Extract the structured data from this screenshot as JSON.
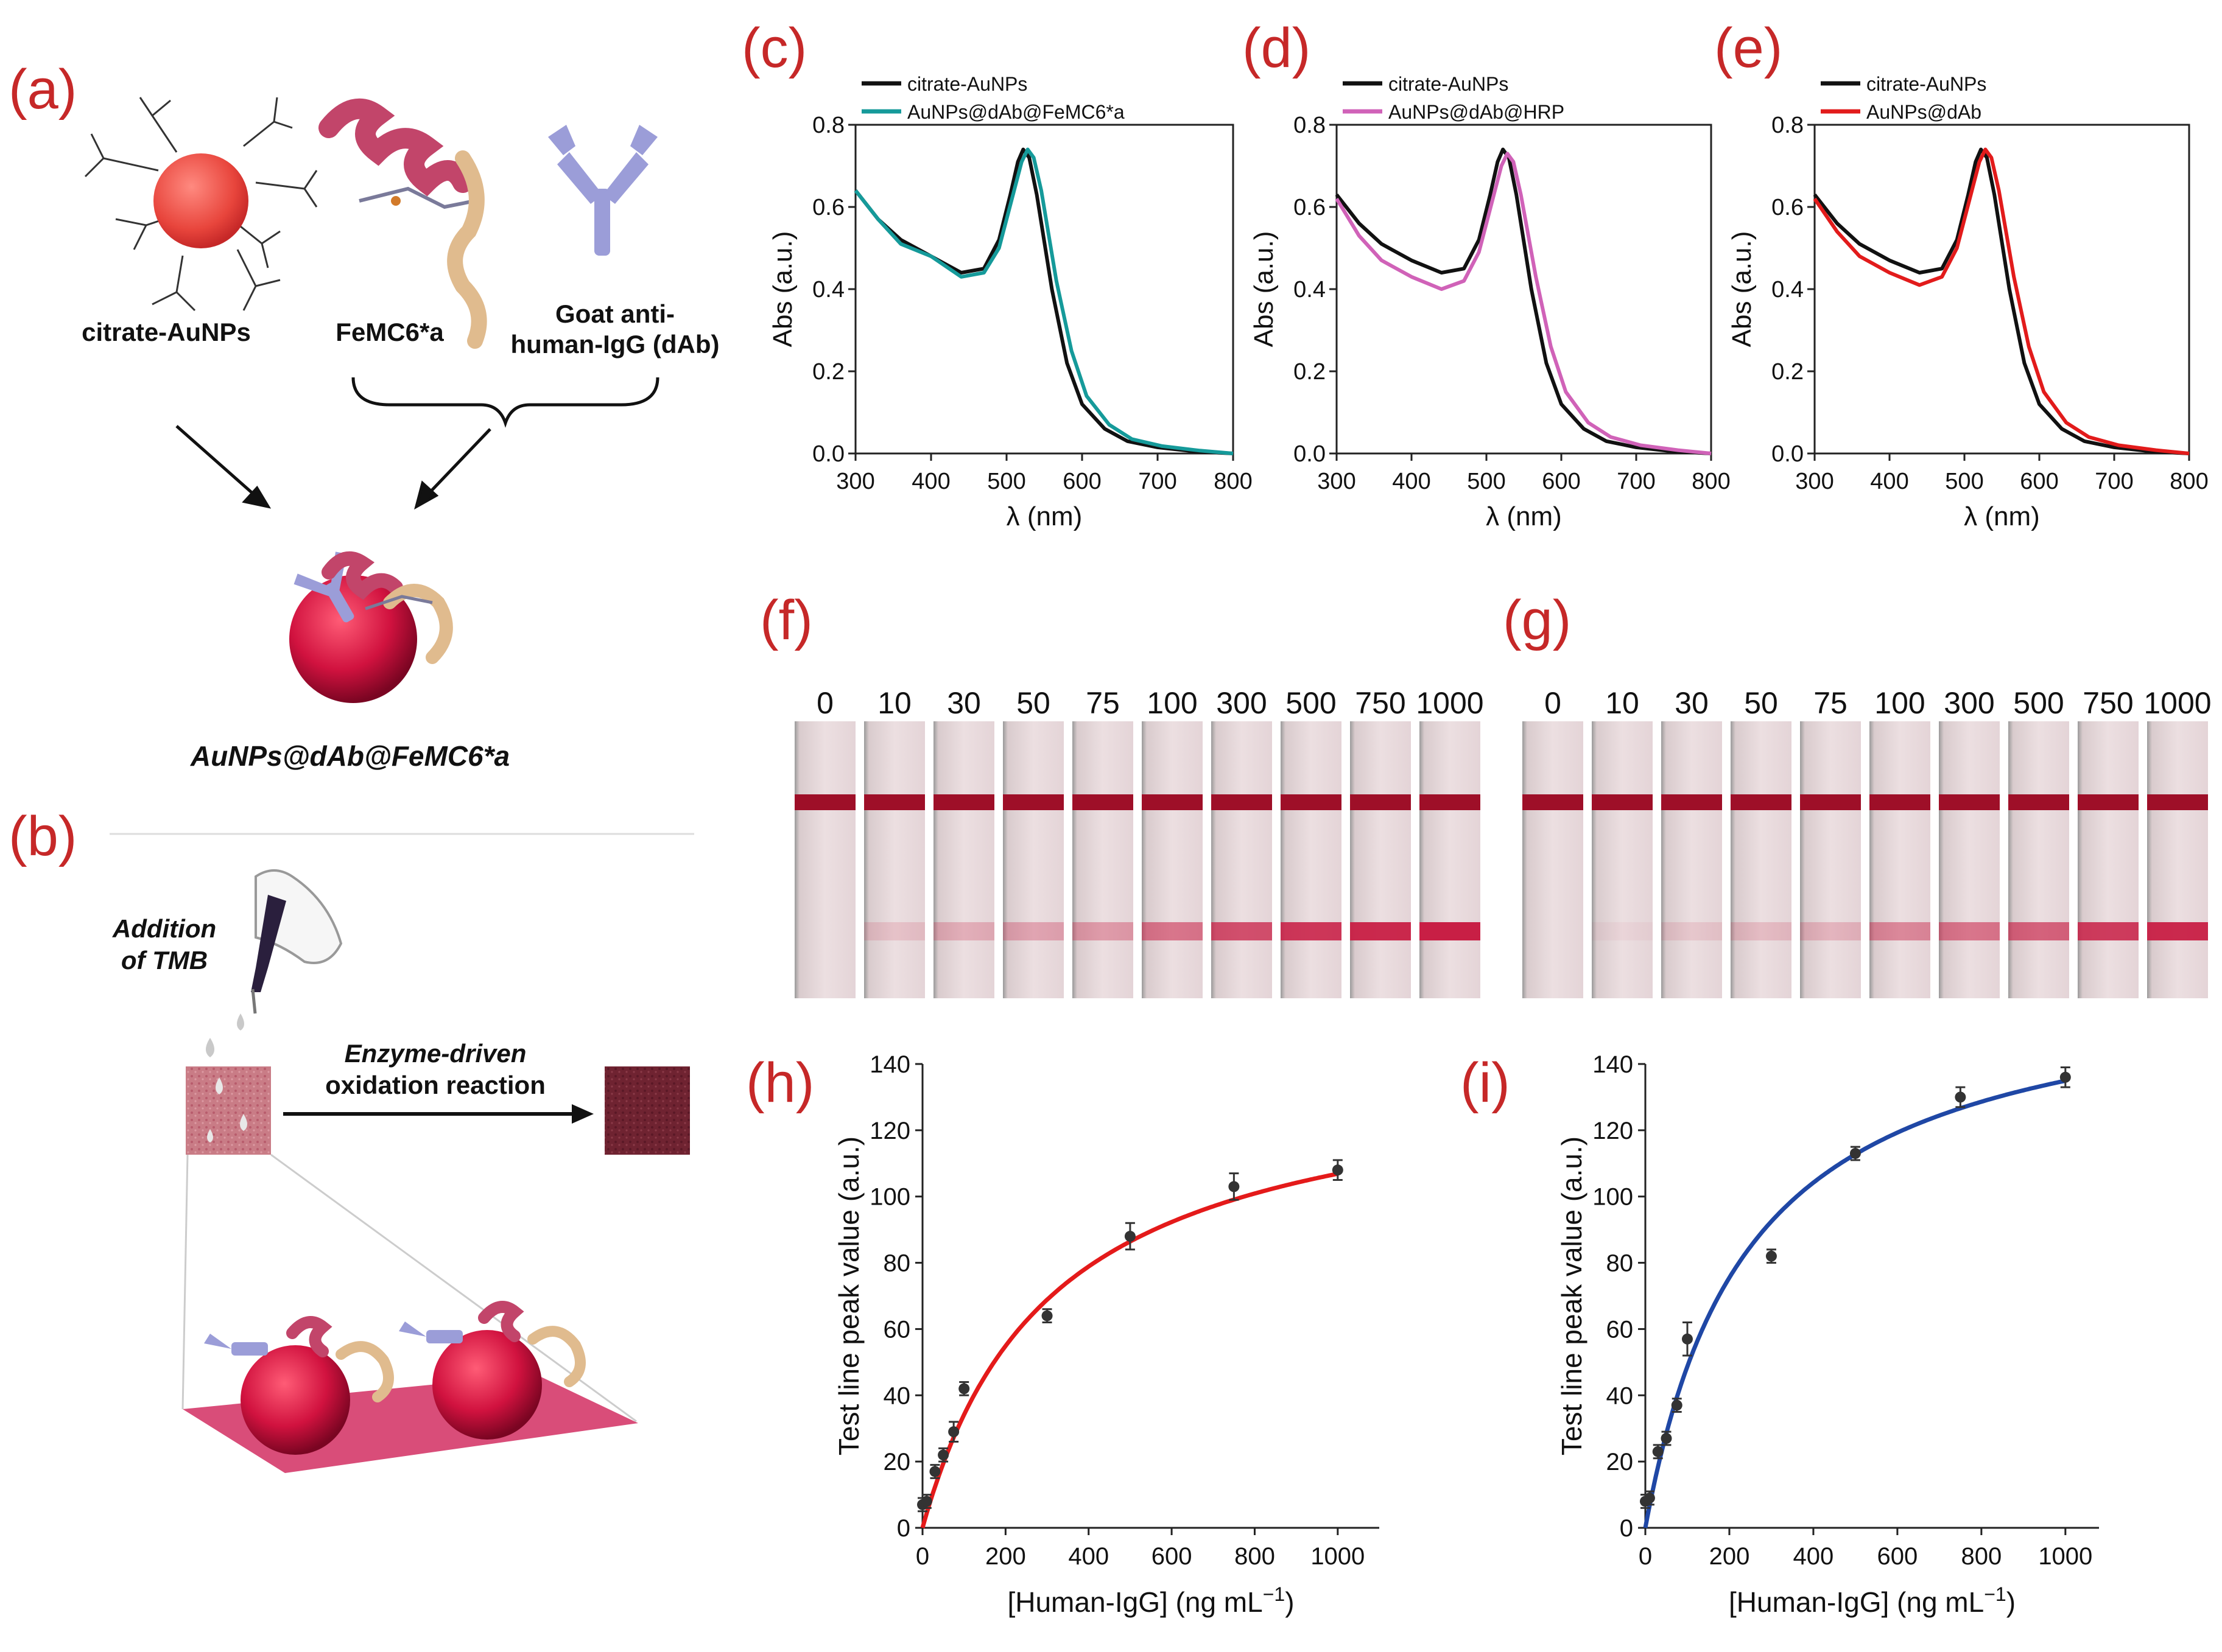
{
  "panels": {
    "a": "(a)",
    "b": "(b)",
    "c": "(c)",
    "d": "(d)",
    "e": "(e)",
    "f": "(f)",
    "g": "(g)",
    "h": "(h)",
    "i": "(i)"
  },
  "schematic": {
    "citrate_label": "citrate-AuNPs",
    "femc_label": "FeMC6*a",
    "dab_label_1": "Goat anti-",
    "dab_label_2": "human-IgG (dAb)",
    "conjugate_label": "AuNPs@dAb@FeMC6*a",
    "tmb_label_1": "Addition",
    "tmb_label_2": "of TMB",
    "reaction_label_1": "Enzyme-driven",
    "reaction_label_2": "oxidation reaction"
  },
  "strips": {
    "concentrations": [
      "0",
      "10",
      "30",
      "50",
      "75",
      "100",
      "300",
      "500",
      "750",
      "1000"
    ]
  },
  "colors": {
    "panel_letter": "#c62828",
    "citrate": "#111111",
    "femc": "#159a9a",
    "hrp": "#d062b8",
    "dab": "#e21b1b",
    "fit_h": "#e41a1a",
    "fit_i": "#1f47a5",
    "strip_bg": "#e9d8db",
    "control_line": "#9e0f28",
    "test_line": "#c81f45"
  },
  "chart_data": [
    {
      "id": "c",
      "type": "line",
      "xlabel": "λ (nm)",
      "ylabel": "Abs (a.u.)",
      "xlim": [
        300,
        800
      ],
      "ylim": [
        0,
        0.8
      ],
      "xticks": [
        300,
        400,
        500,
        600,
        700,
        800
      ],
      "yticks": [
        0.0,
        0.2,
        0.4,
        0.6,
        0.8
      ],
      "ytick_labels": [
        "0.0",
        "0.2",
        "0.4",
        "0.6",
        "0.8"
      ],
      "legend": [
        "citrate-AuNPs",
        "AuNPs@dAb@FeMC6*a"
      ],
      "series": [
        {
          "name": "citrate-AuNPs",
          "x": [
            300,
            330,
            360,
            400,
            440,
            470,
            490,
            505,
            515,
            522,
            530,
            540,
            560,
            580,
            600,
            630,
            660,
            700,
            750,
            800
          ],
          "y": [
            0.64,
            0.57,
            0.52,
            0.48,
            0.44,
            0.45,
            0.52,
            0.63,
            0.71,
            0.74,
            0.72,
            0.63,
            0.4,
            0.22,
            0.12,
            0.06,
            0.03,
            0.015,
            0.005,
            0.0
          ]
        },
        {
          "name": "AuNPs@dAb@FeMC6*a",
          "x": [
            300,
            330,
            360,
            400,
            440,
            470,
            490,
            510,
            520,
            528,
            536,
            546,
            566,
            586,
            606,
            636,
            666,
            706,
            756,
            800
          ],
          "y": [
            0.64,
            0.57,
            0.51,
            0.48,
            0.43,
            0.44,
            0.5,
            0.64,
            0.71,
            0.74,
            0.72,
            0.64,
            0.42,
            0.25,
            0.14,
            0.07,
            0.035,
            0.018,
            0.007,
            0.0
          ]
        }
      ]
    },
    {
      "id": "d",
      "type": "line",
      "xlabel": "λ (nm)",
      "ylabel": "Abs (a.u.)",
      "xlim": [
        300,
        800
      ],
      "ylim": [
        0,
        0.8
      ],
      "xticks": [
        300,
        400,
        500,
        600,
        700,
        800
      ],
      "yticks": [
        0.0,
        0.2,
        0.4,
        0.6,
        0.8
      ],
      "ytick_labels": [
        "0.0",
        "0.2",
        "0.4",
        "0.6",
        "0.8"
      ],
      "legend": [
        "citrate-AuNPs",
        "AuNPs@dAb@HRP"
      ],
      "series": [
        {
          "name": "citrate-AuNPs",
          "x": [
            300,
            330,
            360,
            400,
            440,
            470,
            490,
            505,
            515,
            522,
            530,
            540,
            560,
            580,
            600,
            630,
            660,
            700,
            750,
            800
          ],
          "y": [
            0.63,
            0.56,
            0.51,
            0.47,
            0.44,
            0.45,
            0.52,
            0.63,
            0.71,
            0.74,
            0.72,
            0.63,
            0.4,
            0.22,
            0.12,
            0.06,
            0.03,
            0.015,
            0.005,
            0.0
          ]
        },
        {
          "name": "AuNPs@dAb@HRP",
          "x": [
            300,
            330,
            360,
            400,
            440,
            470,
            490,
            510,
            520,
            528,
            536,
            546,
            566,
            586,
            606,
            636,
            666,
            706,
            756,
            800
          ],
          "y": [
            0.62,
            0.53,
            0.47,
            0.43,
            0.4,
            0.42,
            0.49,
            0.63,
            0.7,
            0.73,
            0.71,
            0.63,
            0.43,
            0.26,
            0.15,
            0.075,
            0.04,
            0.02,
            0.008,
            0.0
          ]
        }
      ]
    },
    {
      "id": "e",
      "type": "line",
      "xlabel": "λ (nm)",
      "ylabel": "Abs (a.u.)",
      "xlim": [
        300,
        800
      ],
      "ylim": [
        0,
        0.8
      ],
      "xticks": [
        300,
        400,
        500,
        600,
        700,
        800
      ],
      "yticks": [
        0.0,
        0.2,
        0.4,
        0.6,
        0.8
      ],
      "ytick_labels": [
        "0.0",
        "0.2",
        "0.4",
        "0.6",
        "0.8"
      ],
      "legend": [
        "citrate-AuNPs",
        "AuNPs@dAb"
      ],
      "series": [
        {
          "name": "citrate-AuNPs",
          "x": [
            300,
            330,
            360,
            400,
            440,
            470,
            490,
            505,
            515,
            522,
            530,
            540,
            560,
            580,
            600,
            630,
            660,
            700,
            750,
            800
          ],
          "y": [
            0.63,
            0.56,
            0.51,
            0.47,
            0.44,
            0.45,
            0.52,
            0.63,
            0.71,
            0.74,
            0.72,
            0.63,
            0.4,
            0.22,
            0.12,
            0.06,
            0.03,
            0.015,
            0.005,
            0.0
          ]
        },
        {
          "name": "AuNPs@dAb",
          "x": [
            300,
            330,
            360,
            400,
            440,
            470,
            490,
            510,
            520,
            528,
            536,
            546,
            566,
            586,
            606,
            636,
            666,
            706,
            756,
            800
          ],
          "y": [
            0.62,
            0.54,
            0.48,
            0.44,
            0.41,
            0.43,
            0.5,
            0.64,
            0.71,
            0.74,
            0.72,
            0.64,
            0.43,
            0.26,
            0.15,
            0.075,
            0.04,
            0.02,
            0.008,
            0.0
          ]
        }
      ]
    },
    {
      "id": "h",
      "type": "scatter",
      "xlabel": "[Human-IgG] (ng mL",
      "xlabel_sup": "−1",
      "xlabel_end": ")",
      "ylabel": "Test line peak value (a.u.)",
      "xlim": [
        0,
        1100
      ],
      "ylim": [
        0,
        140
      ],
      "xticks": [
        0,
        200,
        400,
        600,
        800,
        1000
      ],
      "yticks": [
        0,
        20,
        40,
        60,
        80,
        100,
        120,
        140
      ],
      "points": {
        "x": [
          0,
          10,
          30,
          50,
          75,
          100,
          300,
          500,
          750,
          1000
        ],
        "y": [
          7,
          8,
          17,
          22,
          29,
          42,
          64,
          88,
          103,
          108
        ],
        "err": [
          2,
          2,
          2,
          2,
          3,
          2,
          2,
          4,
          4,
          3
        ]
      },
      "fit": {
        "model": "hyperbolic",
        "vmax": 140,
        "k": 310
      }
    },
    {
      "id": "i",
      "type": "scatter",
      "xlabel": "[Human-IgG] (ng mL",
      "xlabel_sup": "−1",
      "xlabel_end": ")",
      "ylabel": "Test line peak value (a.u.)",
      "xlim": [
        0,
        1080
      ],
      "ylim": [
        0,
        140
      ],
      "xticks": [
        0,
        200,
        400,
        600,
        800,
        1000
      ],
      "yticks": [
        0,
        20,
        40,
        60,
        80,
        100,
        120,
        140
      ],
      "points": {
        "x": [
          0,
          10,
          30,
          50,
          75,
          100,
          300,
          500,
          750,
          1000
        ],
        "y": [
          8,
          9,
          23,
          27,
          37,
          57,
          82,
          113,
          130,
          136
        ],
        "err": [
          2,
          2,
          2,
          2,
          2,
          5,
          2,
          2,
          3,
          3
        ]
      },
      "fit": {
        "model": "hyperbolic",
        "vmax": 168,
        "k": 245
      }
    }
  ]
}
